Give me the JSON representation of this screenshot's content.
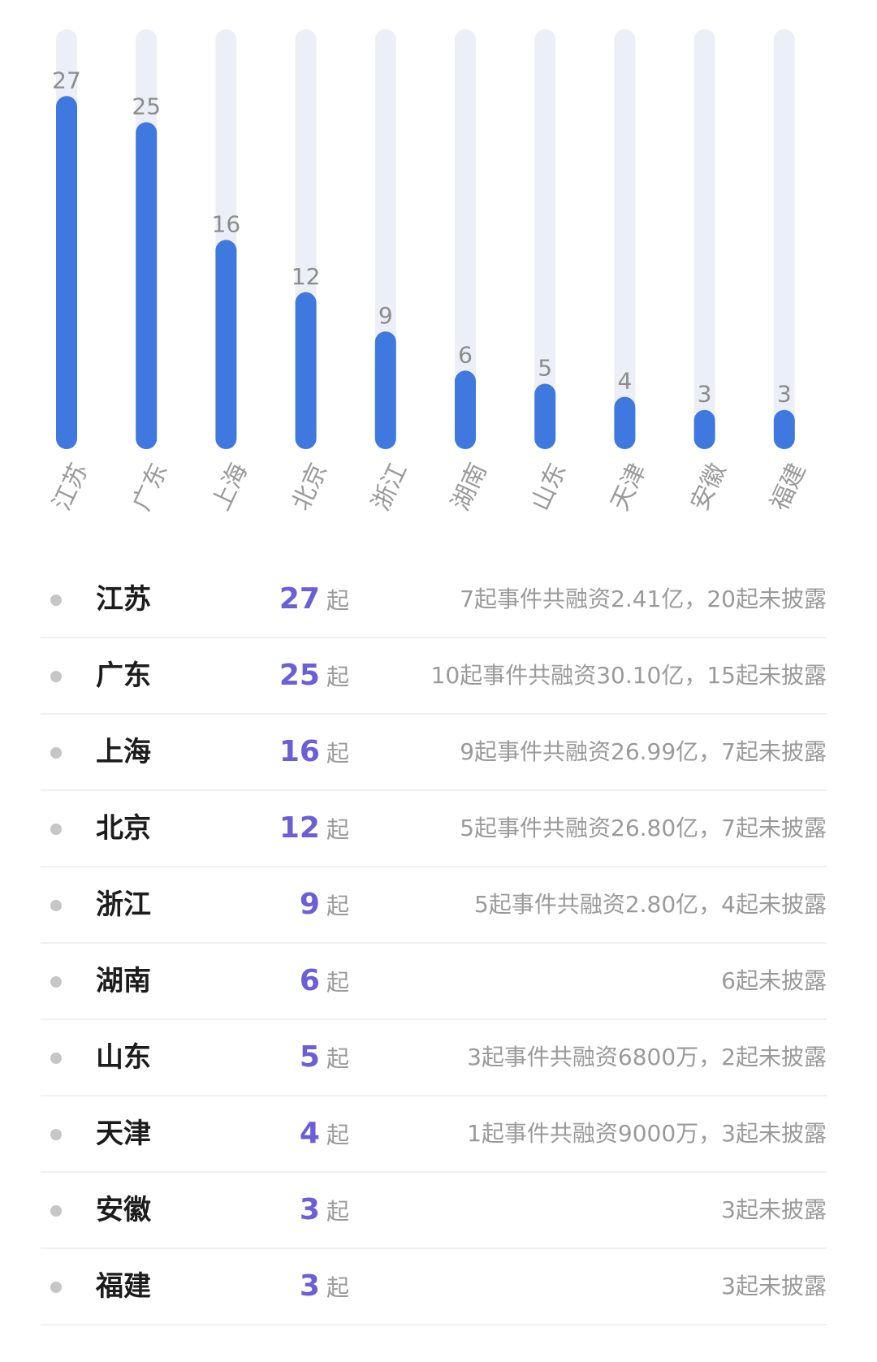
{
  "chart_data": {
    "type": "bar",
    "categories": [
      "江苏",
      "广东",
      "上海",
      "北京",
      "浙江",
      "湖南",
      "山东",
      "天津",
      "安徽",
      "福建"
    ],
    "values": [
      27,
      25,
      16,
      12,
      9,
      6,
      5,
      4,
      3,
      3
    ],
    "title": "",
    "xlabel": "",
    "ylabel": "",
    "ylim": [
      0,
      30
    ],
    "grid": false,
    "colors": {
      "bar": "#3f78de",
      "track": "#eceff7",
      "value_label": "#8c8c8c",
      "tick_label": "#9a9a9a"
    }
  },
  "table": {
    "unit": "起",
    "rows": [
      {
        "province": "江苏",
        "count": "27",
        "detail": "7起事件共融资2.41亿，20起未披露"
      },
      {
        "province": "广东",
        "count": "25",
        "detail": "10起事件共融资30.10亿，15起未披露"
      },
      {
        "province": "上海",
        "count": "16",
        "detail": "9起事件共融资26.99亿，7起未披露"
      },
      {
        "province": "北京",
        "count": "12",
        "detail": "5起事件共融资26.80亿，7起未披露"
      },
      {
        "province": "浙江",
        "count": "9",
        "detail": "5起事件共融资2.80亿，4起未披露"
      },
      {
        "province": "湖南",
        "count": "6",
        "detail": "6起未披露"
      },
      {
        "province": "山东",
        "count": "5",
        "detail": "3起事件共融资6800万，2起未披露"
      },
      {
        "province": "天津",
        "count": "4",
        "detail": "1起事件共融资9000万，3起未披露"
      },
      {
        "province": "安徽",
        "count": "3",
        "detail": "3起未披露"
      },
      {
        "province": "福建",
        "count": "3",
        "detail": "3起未披露"
      }
    ],
    "colors": {
      "count": "#6a5fd6",
      "province": "#1c1c1c",
      "detail": "#9a9a9a",
      "dot": "#c6c6c6"
    }
  }
}
